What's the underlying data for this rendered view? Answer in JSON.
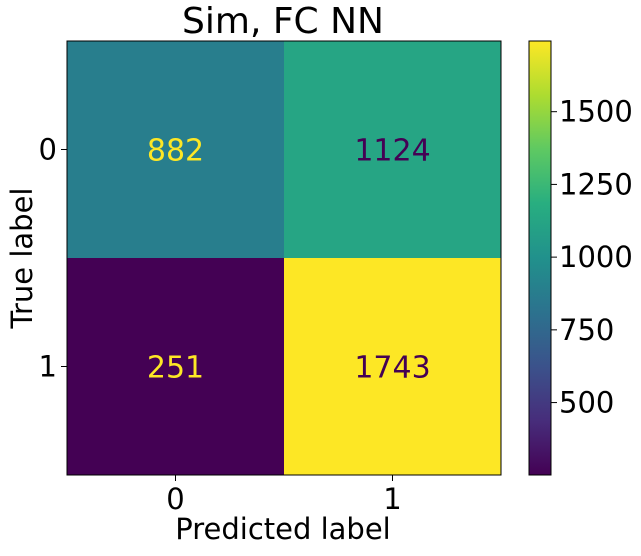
{
  "chart_data": {
    "type": "heatmap",
    "title": "Sim, FC NN",
    "xlabel": "Predicted label",
    "ylabel": "True label",
    "x_categories": [
      "0",
      "1"
    ],
    "y_categories": [
      "0",
      "1"
    ],
    "matrix": [
      [
        882,
        1124
      ],
      [
        251,
        1743
      ]
    ],
    "colormap": "viridis",
    "colorbar": {
      "ticks": [
        500,
        750,
        1000,
        1250,
        1500
      ],
      "tick_labels": [
        "500",
        "750",
        "1000",
        "1250",
        "1500"
      ],
      "vmin": 251,
      "vmax": 1743
    },
    "cell_text_colors": {
      "on_dark": "#fde725",
      "on_light": "#440154"
    }
  }
}
